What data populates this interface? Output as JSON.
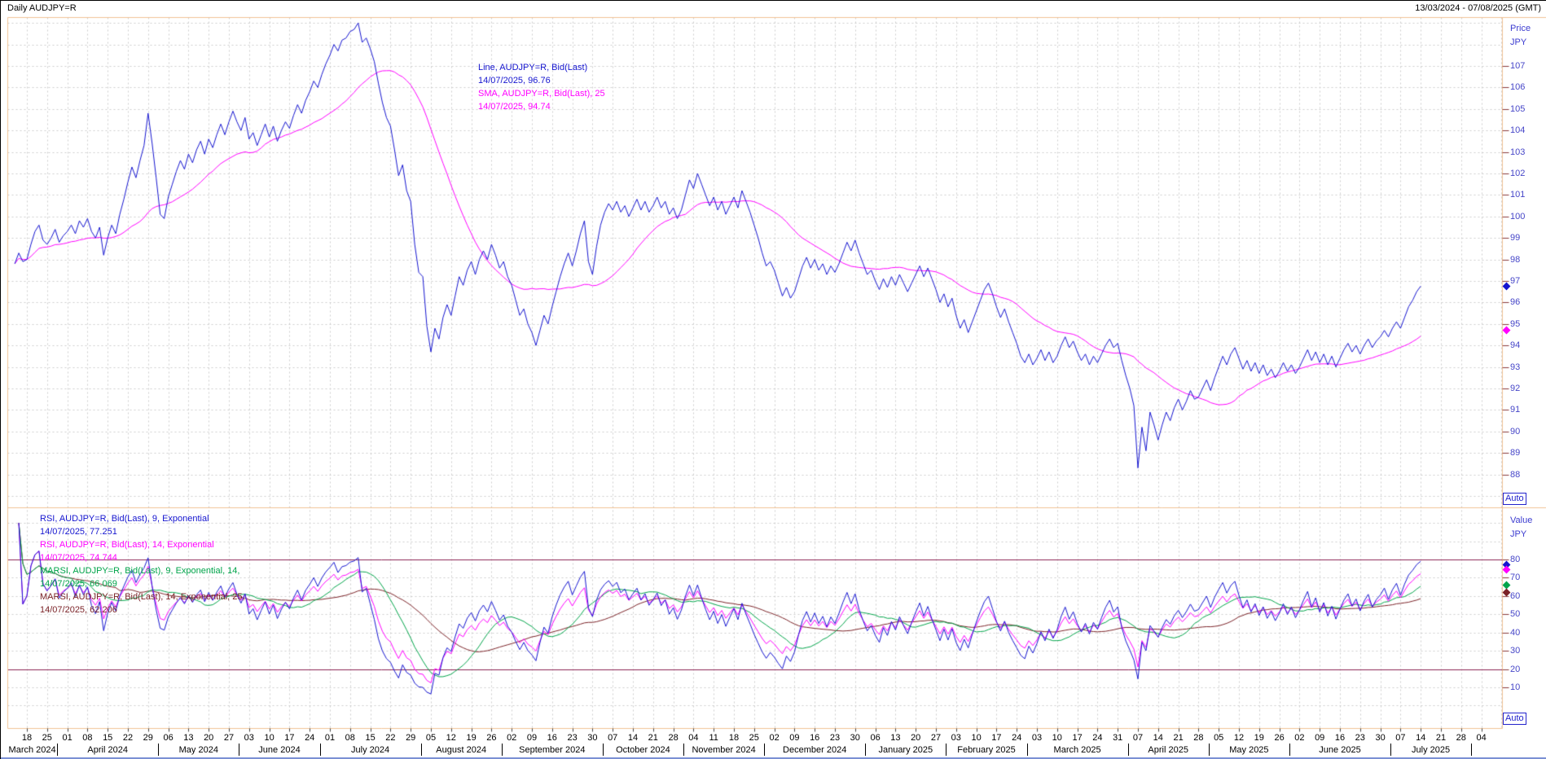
{
  "title_bar": {
    "title": "Daily AUDJPY=R",
    "date_range": "13/03/2024 - 07/08/2025 (GMT)"
  },
  "price_panel": {
    "axis_title_line1": "Price",
    "axis_title_line2": "JPY",
    "auto_label": "Auto",
    "ticks": [
      107,
      106,
      105,
      104,
      103,
      102,
      101,
      100,
      99,
      98,
      97,
      96,
      95,
      94,
      93,
      92,
      91,
      90,
      89,
      88
    ],
    "legend": [
      {
        "text": "Line, AUDJPY=R, Bid(Last)",
        "color": "#1515cf"
      },
      {
        "text": "14/07/2025, 96.76",
        "color": "#1515cf"
      },
      {
        "text": "SMA, AUDJPY=R, Bid(Last),  25",
        "color": "#ff00ff"
      },
      {
        "text": "14/07/2025, 94.74",
        "color": "#ff00ff"
      }
    ],
    "markers": [
      {
        "name": "price-marker-line",
        "value": 96.76,
        "color": "#1515cf"
      },
      {
        "name": "price-marker-sma",
        "value": 94.74,
        "color": "#ff00ff"
      }
    ]
  },
  "rsi_panel": {
    "axis_title_line1": "Value",
    "axis_title_line2": "JPY",
    "auto_label": "Auto",
    "ticks": [
      80,
      70,
      60,
      50,
      40,
      30,
      20,
      10
    ],
    "thresholds": [
      80,
      20
    ],
    "threshold_color": "#8b2252",
    "legend": [
      {
        "text": "RSI, AUDJPY=R, Bid(Last),  9, Exponential",
        "color": "#1515cf"
      },
      {
        "text": "14/07/2025, 77.251",
        "color": "#1515cf"
      },
      {
        "text": "RSI, AUDJPY=R, Bid(Last),  14, Exponential",
        "color": "#ff00ff"
      },
      {
        "text": "14/07/2025, 74.744",
        "color": "#ff00ff"
      },
      {
        "text": "MARSI, AUDJPY=R, Bid(Last),  9, Exponential, 14,",
        "color": "#00a44a"
      },
      {
        "text": "14/07/2025, 66.069",
        "color": "#00a44a"
      },
      {
        "text": "MARSI, AUDJPY=R, Bid(Last),  14, Exponential, 25,",
        "color": "#7b2328"
      },
      {
        "text": "14/07/2025, 62.206",
        "color": "#7b2328"
      }
    ],
    "markers": [
      {
        "name": "rsi9-marker",
        "value": 77.251,
        "color": "#1515cf"
      },
      {
        "name": "rsi14-marker",
        "value": 74.744,
        "color": "#ff00ff"
      },
      {
        "name": "marsi9-marker",
        "value": 66.069,
        "color": "#00a44a"
      },
      {
        "name": "marsi14-marker",
        "value": 62.206,
        "color": "#7b2328"
      }
    ]
  },
  "x_axis": {
    "day_labels": [
      "18",
      "25",
      "01",
      "08",
      "15",
      "22",
      "29",
      "06",
      "13",
      "20",
      "27",
      "03",
      "10",
      "17",
      "24",
      "01",
      "08",
      "15",
      "22",
      "29",
      "05",
      "12",
      "19",
      "26",
      "02",
      "09",
      "16",
      "23",
      "30",
      "07",
      "14",
      "21",
      "28",
      "04",
      "11",
      "18",
      "25",
      "02",
      "09",
      "16",
      "23",
      "30",
      "06",
      "13",
      "20",
      "27",
      "03",
      "10",
      "17",
      "24",
      "03",
      "10",
      "17",
      "24",
      "31",
      "07",
      "14",
      "21",
      "28",
      "05",
      "12",
      "19",
      "26",
      "02",
      "09",
      "16",
      "23",
      "30",
      "07",
      "14",
      "21",
      "28",
      "04"
    ],
    "months": [
      {
        "label": "March 2024",
        "weeks": 2
      },
      {
        "label": "April 2024",
        "weeks": 5
      },
      {
        "label": "May 2024",
        "weeks": 4
      },
      {
        "label": "June 2024",
        "weeks": 4
      },
      {
        "label": "July 2024",
        "weeks": 5
      },
      {
        "label": "August 2024",
        "weeks": 4
      },
      {
        "label": "September 2024",
        "weeks": 5
      },
      {
        "label": "October 2024",
        "weeks": 4
      },
      {
        "label": "November 2024",
        "weeks": 4
      },
      {
        "label": "December 2024",
        "weeks": 5
      },
      {
        "label": "January 2025",
        "weeks": 4
      },
      {
        "label": "February 2025",
        "weeks": 4
      },
      {
        "label": "March 2025",
        "weeks": 5
      },
      {
        "label": "April 2025",
        "weeks": 4
      },
      {
        "label": "May 2025",
        "weeks": 4
      },
      {
        "label": "June 2025",
        "weeks": 5
      },
      {
        "label": "July 2025",
        "weeks": 4
      }
    ]
  },
  "colors": {
    "grid": "#cdcdcd",
    "frame": "#f0c294",
    "tick_dash": "#8a3a3a",
    "price_line": "#1515cf",
    "sma_line": "#ff00ff",
    "rsi9_line": "#1515cf",
    "rsi14_line": "#ff00ff",
    "marsi9_line": "#00a44a",
    "marsi14_line": "#7b2328"
  },
  "chart_data": {
    "type": "line",
    "title": "Daily AUDJPY=R",
    "x_range": [
      "13/03/2024",
      "07/08/2025"
    ],
    "interval": "daily (trading days), weekly gridlines",
    "price_axis": {
      "label": "Price JPY",
      "ticks_min": 88,
      "ticks_max": 107,
      "plot_min": 86.6,
      "plot_max": 109.3
    },
    "value_axis": {
      "label": "Value JPY",
      "ticks_min": 10,
      "ticks_max": 80,
      "thresholds": [
        80,
        20
      ]
    },
    "series": [
      {
        "name": "Bid(Last)",
        "type": "price",
        "last_date": "14/07/2025",
        "last_value": 96.76,
        "values": [
          97.8,
          98.3,
          97.9,
          98.0,
          98.7,
          99.3,
          99.6,
          98.9,
          98.7,
          99.0,
          99.4,
          98.8,
          99.1,
          99.3,
          99.6,
          99.2,
          99.8,
          99.5,
          99.9,
          99.3,
          99.0,
          99.5,
          98.2,
          99.0,
          99.6,
          99.2,
          100.1,
          100.8,
          101.6,
          102.3,
          101.8,
          102.6,
          103.3,
          104.8,
          103.4,
          101.8,
          100.1,
          99.9,
          100.9,
          101.5,
          102.1,
          102.6,
          102.2,
          102.9,
          102.5,
          103.1,
          103.5,
          102.9,
          103.6,
          103.2,
          103.8,
          104.3,
          103.8,
          104.4,
          104.9,
          104.4,
          104.0,
          104.6,
          103.6,
          103.9,
          103.3,
          103.8,
          104.3,
          103.7,
          104.2,
          103.5,
          104.0,
          104.4,
          104.1,
          104.7,
          105.2,
          104.8,
          105.4,
          105.8,
          106.3,
          106.0,
          106.6,
          107.1,
          107.5,
          108.0,
          107.7,
          108.2,
          108.3,
          108.6,
          108.7,
          109.0,
          108.1,
          108.3,
          107.8,
          107.2,
          106.2,
          105.3,
          104.6,
          104.2,
          103.1,
          101.9,
          102.4,
          101.2,
          100.7,
          98.7,
          97.4,
          97.2,
          94.9,
          93.7,
          94.8,
          94.3,
          95.3,
          95.9,
          95.4,
          96.3,
          97.2,
          96.8,
          97.5,
          97.9,
          97.3,
          98.0,
          98.4,
          98.0,
          98.7,
          98.2,
          97.6,
          97.9,
          97.2,
          96.8,
          96.1,
          95.4,
          95.7,
          95.0,
          94.6,
          94.0,
          94.7,
          95.4,
          95.0,
          95.8,
          96.5,
          97.2,
          97.8,
          98.3,
          97.7,
          98.4,
          99.2,
          99.8,
          97.9,
          97.3,
          98.6,
          99.6,
          100.2,
          100.6,
          100.3,
          100.7,
          100.2,
          100.5,
          100.0,
          100.4,
          100.8,
          100.3,
          100.7,
          100.2,
          100.5,
          100.9,
          100.4,
          100.7,
          100.1,
          100.4,
          99.9,
          100.3,
          101.0,
          101.7,
          101.3,
          102.0,
          101.5,
          101.0,
          100.5,
          100.9,
          100.3,
          100.7,
          100.1,
          100.5,
          100.9,
          100.4,
          101.2,
          100.7,
          100.2,
          99.6,
          99.0,
          98.3,
          97.7,
          97.9,
          97.5,
          96.9,
          96.3,
          96.7,
          96.2,
          96.5,
          97.1,
          97.7,
          98.1,
          97.6,
          98.0,
          97.5,
          97.8,
          97.3,
          97.7,
          97.4,
          97.8,
          98.3,
          98.8,
          98.4,
          98.9,
          98.3,
          97.8,
          97.3,
          97.5,
          97.0,
          96.6,
          97.1,
          96.7,
          97.2,
          96.8,
          97.3,
          96.9,
          96.5,
          96.9,
          97.3,
          97.7,
          97.2,
          97.6,
          97.1,
          96.6,
          96.0,
          96.4,
          95.8,
          96.2,
          95.4,
          94.8,
          95.2,
          94.6,
          95.1,
          95.6,
          96.1,
          96.6,
          96.9,
          96.4,
          95.8,
          95.3,
          95.7,
          95.1,
          94.6,
          94.1,
          93.5,
          93.2,
          93.6,
          93.1,
          93.4,
          93.8,
          93.3,
          93.7,
          93.2,
          93.5,
          94.0,
          94.4,
          93.9,
          94.2,
          93.7,
          93.3,
          93.6,
          93.1,
          93.5,
          93.2,
          93.6,
          94.0,
          94.3,
          93.9,
          94.1,
          93.3,
          92.6,
          92.0,
          91.2,
          88.3,
          90.2,
          89.1,
          90.9,
          90.3,
          89.6,
          90.3,
          90.9,
          90.5,
          91.1,
          91.5,
          91.0,
          91.4,
          91.9,
          91.5,
          91.6,
          92.0,
          92.4,
          91.9,
          92.5,
          93.0,
          93.5,
          93.1,
          93.6,
          93.9,
          93.4,
          92.9,
          93.3,
          92.8,
          93.2,
          92.7,
          93.1,
          92.6,
          92.9,
          92.5,
          92.8,
          93.2,
          92.8,
          93.1,
          92.7,
          93.0,
          93.4,
          93.8,
          93.3,
          93.7,
          93.2,
          93.6,
          93.1,
          93.5,
          93.0,
          93.4,
          93.8,
          94.1,
          93.7,
          94.0,
          93.6,
          94.0,
          94.3,
          93.9,
          94.2,
          94.4,
          94.7,
          94.4,
          94.8,
          95.1,
          94.8,
          95.3,
          95.8,
          96.1,
          96.5,
          96.76
        ]
      },
      {
        "name": "SMA 25",
        "type": "derived",
        "derive": "sma",
        "period": 25,
        "last_date": "14/07/2025",
        "last_value": 94.74
      },
      {
        "name": "RSI 9 Exponential",
        "type": "derived",
        "derive": "rsi",
        "period": 9,
        "last_date": "14/07/2025",
        "last_value": 77.251
      },
      {
        "name": "RSI 14 Exponential",
        "type": "derived",
        "derive": "rsi",
        "period": 14,
        "last_date": "14/07/2025",
        "last_value": 74.744
      },
      {
        "name": "MARSI 9 Exponential 14",
        "type": "derived",
        "derive": "marsi",
        "rsi_period": 9,
        "ma_period": 14,
        "last_date": "14/07/2025",
        "last_value": 66.069
      },
      {
        "name": "MARSI 14 Exponential 25",
        "type": "derived",
        "derive": "marsi",
        "rsi_period": 14,
        "ma_period": 25,
        "last_date": "14/07/2025",
        "last_value": 62.206
      }
    ]
  }
}
